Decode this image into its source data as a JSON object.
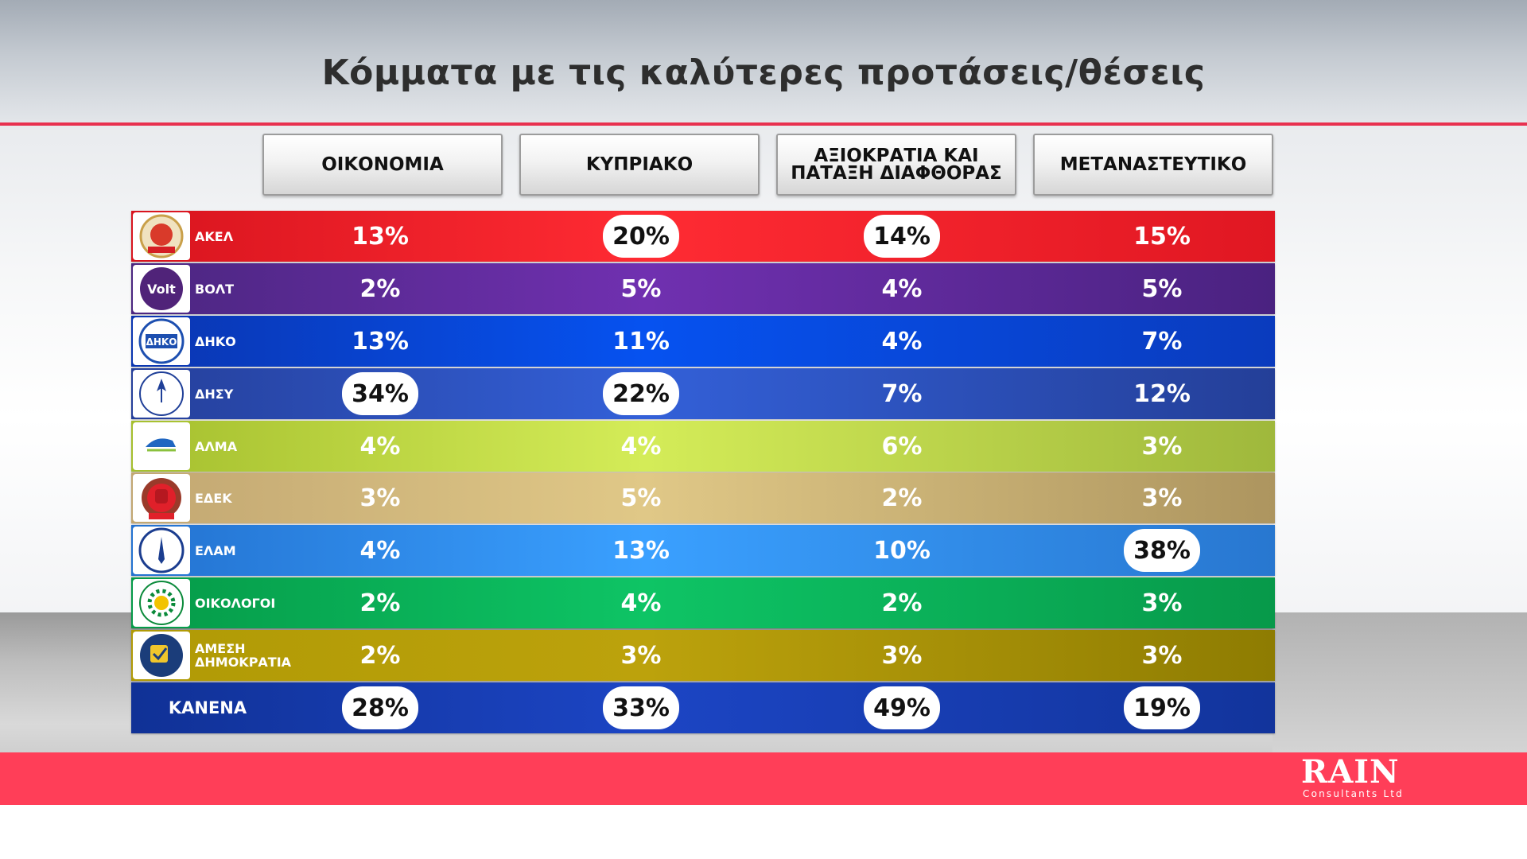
{
  "title": "Κόμματα με τις καλύτερες προτάσεις/θέσεις",
  "brand": {
    "name": "RAIN",
    "subtitle": "Consultants Ltd"
  },
  "colors": {
    "akel": "#ea1f2a",
    "volt": "#5a2a8c",
    "diko": "#0240c8",
    "disy": "#2a4aa8",
    "alma": "#b3c93e",
    "edek": "#c9ad76",
    "elam": "#2b7fd9",
    "oikologoi": "#08a64f",
    "amesi": "#b29a08",
    "kanena": "#13349e"
  },
  "chart_data": {
    "type": "table",
    "title": "Κόμματα με τις καλύτερες προτάσεις/θέσεις",
    "columns": [
      "ΟΙΚΟΝΟΜΙΑ",
      "ΚΥΠΡΙΑΚΟ",
      "ΑΞΙΟΚΡΑΤΙΑ ΚΑΙ ΠΑΤΑΞΗ ΔΙΑΦΘΟΡΑΣ",
      "ΜΕΤΑΝΑΣΤΕΥΤΙΚΟ"
    ],
    "rows": [
      {
        "party": "ΑΚΕΛ",
        "icon": "akel-logo-icon",
        "values": [
          "13%",
          "20%",
          "14%",
          "15%"
        ],
        "highlight": [
          false,
          true,
          true,
          false
        ]
      },
      {
        "party": "ΒΟΛΤ",
        "icon": "volt-logo-icon",
        "values": [
          "2%",
          "5%",
          "4%",
          "5%"
        ],
        "highlight": [
          false,
          false,
          false,
          false
        ]
      },
      {
        "party": "ΔΗΚΟ",
        "icon": "diko-logo-icon",
        "values": [
          "13%",
          "11%",
          "4%",
          "7%"
        ],
        "highlight": [
          false,
          false,
          false,
          false
        ]
      },
      {
        "party": "ΔΗΣΥ",
        "icon": "disy-logo-icon",
        "values": [
          "34%",
          "22%",
          "7%",
          "12%"
        ],
        "highlight": [
          true,
          true,
          false,
          false
        ]
      },
      {
        "party": "ΑΛΜΑ",
        "icon": "alma-logo-icon",
        "values": [
          "4%",
          "4%",
          "6%",
          "3%"
        ],
        "highlight": [
          false,
          false,
          false,
          false
        ]
      },
      {
        "party": "ΕΔΕΚ",
        "icon": "edek-logo-icon",
        "values": [
          "3%",
          "5%",
          "2%",
          "3%"
        ],
        "highlight": [
          false,
          false,
          false,
          false
        ]
      },
      {
        "party": "ΕΛΑΜ",
        "icon": "elam-logo-icon",
        "values": [
          "4%",
          "13%",
          "10%",
          "38%"
        ],
        "highlight": [
          false,
          false,
          false,
          true
        ]
      },
      {
        "party": "ΟΙΚΟΛΟΓΟΙ",
        "icon": "oikologoi-logo-icon",
        "values": [
          "2%",
          "4%",
          "2%",
          "3%"
        ],
        "highlight": [
          false,
          false,
          false,
          false
        ]
      },
      {
        "party": "ΑΜΕΣΗ ΔΗΜΟΚΡΑΤΙΑ",
        "icon": "amesi-dimokratia-logo-icon",
        "values": [
          "2%",
          "3%",
          "3%",
          "3%"
        ],
        "highlight": [
          false,
          false,
          false,
          false
        ]
      },
      {
        "party": "ΚΑΝΕΝΑ",
        "icon": "",
        "values": [
          "28%",
          "33%",
          "49%",
          "19%"
        ],
        "highlight": [
          true,
          true,
          true,
          true
        ]
      }
    ]
  }
}
